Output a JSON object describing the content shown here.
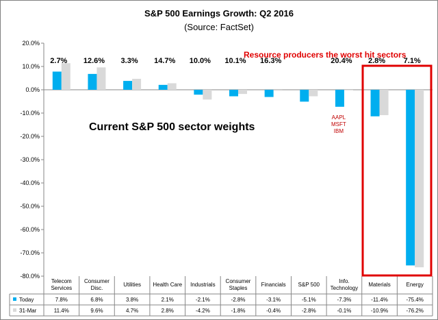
{
  "chart_data": {
    "type": "bar",
    "title": "S&P 500 Earnings Growth: Q2 2016",
    "subtitle": "(Source: FactSet)",
    "categories": [
      "Telecom Services",
      "Consumer Disc.",
      "Utilities",
      "Health Care",
      "Industrials",
      "Consumer Staples",
      "Financials",
      "S&P 500",
      "Info. Technology",
      "Materials",
      "Energy"
    ],
    "category_lines": [
      [
        "Telecom",
        "Services"
      ],
      [
        "Consumer",
        "Disc."
      ],
      [
        "Utilities"
      ],
      [
        "Health Care"
      ],
      [
        "Industrials"
      ],
      [
        "Consumer",
        "Staples"
      ],
      [
        "Financials"
      ],
      [
        "S&P 500"
      ],
      [
        "Info.",
        "Technology"
      ],
      [
        "Materials"
      ],
      [
        "Energy"
      ]
    ],
    "series": [
      {
        "name": "Today",
        "color": "#00aeef",
        "values": [
          7.8,
          6.8,
          3.8,
          2.1,
          -2.1,
          -2.8,
          -3.1,
          -5.1,
          -7.3,
          -11.4,
          -75.4
        ],
        "labels": [
          "7.8%",
          "6.8%",
          "3.8%",
          "2.1%",
          "-2.1%",
          "-2.8%",
          "-3.1%",
          "-5.1%",
          "-7.3%",
          "-11.4%",
          "-75.4%"
        ]
      },
      {
        "name": "31-Mar",
        "color": "#d9d9d9",
        "values": [
          11.4,
          9.6,
          4.7,
          2.8,
          -4.2,
          -1.8,
          -0.4,
          -2.8,
          -0.1,
          -10.9,
          -76.2
        ],
        "labels": [
          "11.4%",
          "9.6%",
          "4.7%",
          "2.8%",
          "-4.2%",
          "-1.8%",
          "-0.4%",
          "-2.8%",
          "-0.1%",
          "-10.9%",
          "-76.2%"
        ]
      }
    ],
    "sector_weights": [
      "2.7%",
      "12.6%",
      "3.3%",
      "14.7%",
      "10.0%",
      "10.1%",
      "16.3%",
      "",
      "20.4%",
      "2.8%",
      "7.1%"
    ],
    "ylim": [
      -80,
      20
    ],
    "yticks": [
      20,
      10,
      0,
      -10,
      -20,
      -30,
      -40,
      -50,
      -60,
      -70,
      -80
    ],
    "ytick_labels": [
      "20.0%",
      "10.0%",
      "0.0%",
      "-10.0%",
      "-20.0%",
      "-30.0%",
      "-40.0%",
      "-50.0%",
      "-60.0%",
      "-70.0%",
      "-80.0%"
    ],
    "grid": false,
    "legend": "data-table",
    "annotations": {
      "weights_caption": "Current S&P 500 sector weights",
      "highlight_caption": "Resource producers the worst hit sectors",
      "highlight_color": "#e00000",
      "highlight_categories": [
        "Materials",
        "Energy"
      ],
      "tech_stocks": [
        "AAPL",
        "MSFT",
        "IBM"
      ],
      "tech_stocks_color": "#c00000"
    }
  }
}
